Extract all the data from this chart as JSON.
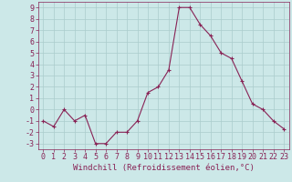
{
  "x": [
    0,
    1,
    2,
    3,
    4,
    5,
    6,
    7,
    8,
    9,
    10,
    11,
    12,
    13,
    14,
    15,
    16,
    17,
    18,
    19,
    20,
    21,
    22,
    23
  ],
  "y": [
    -1,
    -1.5,
    0,
    -1,
    -0.5,
    -3,
    -3,
    -2,
    -2,
    -1,
    1.5,
    2,
    3.5,
    9,
    9,
    7.5,
    6.5,
    5,
    4.5,
    2.5,
    0.5,
    0,
    -1,
    -1.7
  ],
  "line_color": "#882255",
  "marker": "+",
  "marker_size": 3,
  "bg_color": "#cce8e8",
  "grid_color": "#aacccc",
  "xlabel": "Windchill (Refroidissement éolien,°C)",
  "xlabel_fontsize": 6.5,
  "tick_fontsize": 6,
  "ylim": [
    -3.5,
    9.5
  ],
  "yticks": [
    -3,
    -2,
    -1,
    0,
    1,
    2,
    3,
    4,
    5,
    6,
    7,
    8,
    9
  ],
  "xlim": [
    -0.5,
    23.5
  ],
  "xticks": [
    0,
    1,
    2,
    3,
    4,
    5,
    6,
    7,
    8,
    9,
    10,
    11,
    12,
    13,
    14,
    15,
    16,
    17,
    18,
    19,
    20,
    21,
    22,
    23
  ]
}
